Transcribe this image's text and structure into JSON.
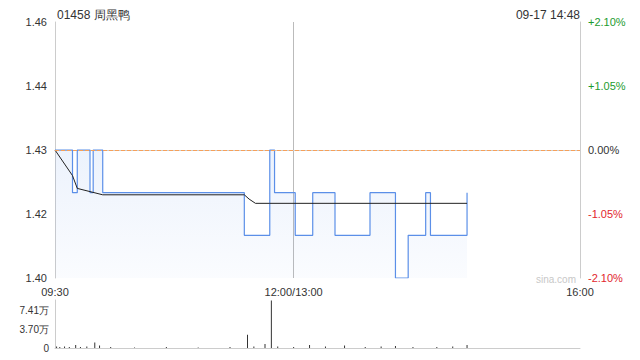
{
  "chart_data": [
    {
      "type": "line",
      "title": "01458 周黑鸭",
      "subtitle": "09-17 14:48",
      "watermark": "sina.com",
      "grid": "x",
      "xlim": [
        0,
        330
      ],
      "xticks": [
        {
          "value": 0,
          "label": "09:30"
        },
        {
          "value": 150,
          "label": "12:00/13:00"
        },
        {
          "value": 330,
          "label": "16:00"
        }
      ],
      "ylim": [
        1.4,
        1.46
      ],
      "yticks": [
        {
          "value": 1.4,
          "label": "1.40"
        },
        {
          "value": 1.4151,
          "label": "1.42"
        },
        {
          "value": 1.43,
          "label": "1.43"
        },
        {
          "value": 1.4449,
          "label": "1.44"
        },
        {
          "value": 1.46,
          "label": "1.46"
        }
      ],
      "y2lim": [
        -2.1,
        2.1
      ],
      "y2ticks": [
        {
          "value": -2.1,
          "label": "-2.10%"
        },
        {
          "value": -1.05,
          "label": "-1.05%"
        },
        {
          "value": 0,
          "label": "0.00%"
        },
        {
          "value": 1.05,
          "label": "+1.05%"
        },
        {
          "value": 2.1,
          "label": "+2.10%"
        }
      ],
      "reference_line": {
        "value": 1.43,
        "color": "#f5a05a",
        "line_style": "dashed"
      },
      "series": [
        {
          "type": "step",
          "color": "#5b8fe8",
          "x": [
            0,
            11,
            14,
            22,
            24,
            30,
            119,
            135,
            138,
            151,
            162,
            176,
            198,
            214,
            222,
            233,
            236,
            259
          ],
          "values": [
            1.43,
            1.42,
            1.43,
            1.42,
            1.43,
            1.42,
            1.41,
            1.43,
            1.42,
            1.41,
            1.42,
            1.41,
            1.42,
            1.4,
            1.41,
            1.42,
            1.41,
            1.42
          ]
        },
        {
          "type": "line",
          "color": "#222222",
          "x": [
            0,
            11,
            14,
            30,
            119,
            122,
            126,
            135,
            259
          ],
          "values": [
            1.43,
            1.424,
            1.421,
            1.4195,
            1.4195,
            1.4185,
            1.4175,
            1.4175,
            1.4175
          ]
        }
      ]
    },
    {
      "type": "bar",
      "color": "#333333",
      "tick_labels": "y",
      "xlim": [
        0,
        330
      ],
      "ylim": [
        0,
        9.5
      ],
      "yticks": [
        0,
        {
          "value": 3.7,
          "label": "3.70万"
        },
        {
          "value": 7.41,
          "label": "7.41万"
        }
      ],
      "x": [
        1,
        3,
        6,
        9,
        13,
        16,
        20,
        25,
        28,
        35,
        50,
        70,
        90,
        110,
        121,
        125,
        132,
        136,
        140,
        150,
        160,
        170,
        182,
        195,
        205,
        214,
        225,
        240,
        250,
        259
      ],
      "values": [
        0.3,
        0.2,
        0.3,
        0.2,
        0.6,
        0.2,
        0.3,
        1.1,
        0.5,
        0.2,
        0.1,
        0.2,
        0.1,
        0.2,
        2.6,
        0.3,
        0.8,
        9.4,
        0.3,
        0.2,
        0.6,
        0.3,
        0.5,
        0.2,
        0.3,
        0.4,
        0.2,
        0.2,
        0.3,
        0.6
      ]
    }
  ]
}
